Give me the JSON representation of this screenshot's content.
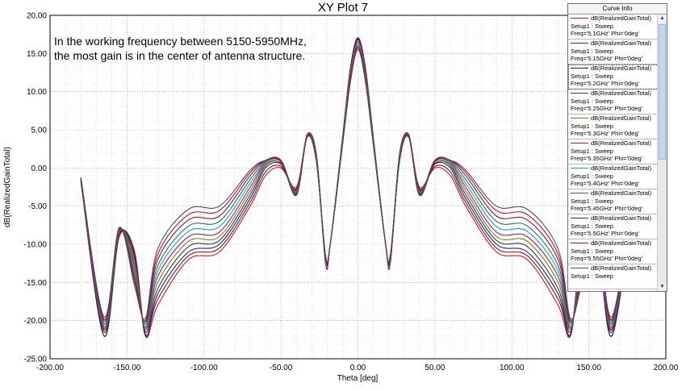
{
  "chart_data": {
    "type": "line",
    "title": "XY Plot 7",
    "xlabel": "Theta [deg]",
    "ylabel": "dB(RealizedGainTotal)",
    "xlim": [
      -200,
      200
    ],
    "ylim": [
      -25,
      20
    ],
    "x_ticks": [
      "-200.00",
      "-150.00",
      "-100.00",
      "-50.00",
      "0.00",
      "50.00",
      "100.00",
      "150.00",
      "200.00"
    ],
    "y_ticks": [
      "20.00",
      "15.00",
      "10.00",
      "5.00",
      "0.00",
      "-5.00",
      "-10.00",
      "-15.00",
      "-20.00",
      "-25.00"
    ],
    "grid": true,
    "annotation": [
      "In the working frequency between 5150-5950MHz,",
      "the most gain is in the center of antenna structure."
    ],
    "legend_title": "Curve Info",
    "legend_position": "top-right",
    "x": [
      -180,
      -165,
      -155,
      -145,
      -138,
      -130,
      -110,
      -90,
      -70,
      -60,
      -50,
      -40,
      -33,
      -27,
      -21,
      -18,
      -10,
      -5,
      0,
      5,
      10,
      18,
      21,
      27,
      33,
      40,
      50,
      60,
      70,
      90,
      110,
      130,
      138,
      145,
      155,
      165,
      180
    ],
    "series": [
      {
        "name": "dB(RealizedGainTotal) Setup1 : Sweep Freq='5.1GHz' Phi='0deg'",
        "color": "#e8101e",
        "values": [
          -1.8,
          -22,
          -9,
          -11,
          -22,
          -18,
          -12,
          -11,
          -5,
          -1,
          0,
          -2.5,
          4.2,
          1.8,
          -12,
          -10,
          4,
          13,
          17.1,
          13,
          4,
          -10,
          -12,
          1.8,
          4.2,
          -2.5,
          0,
          -1,
          -5,
          -11,
          -12,
          -18,
          -22,
          -11,
          -9,
          -22,
          -1.8
        ]
      },
      {
        "name": "dB(RealizedGainTotal) Setup1 : Sweep Freq='5.15GHz' Phi='0deg'",
        "color": "#7a1730",
        "values": [
          -1.7,
          -21.5,
          -8.8,
          -11.3,
          -21.8,
          -17.2,
          -11.5,
          -10.5,
          -4.5,
          -0.5,
          0.2,
          -2.7,
          4.2,
          1.7,
          -12,
          -10,
          3.9,
          12.9,
          17.0,
          12.9,
          3.9,
          -10,
          -12,
          1.7,
          4.2,
          -2.7,
          0.2,
          -0.5,
          -4.5,
          -10.5,
          -11.5,
          -17.2,
          -21.8,
          -11.3,
          -8.8,
          -21.5,
          -1.7
        ]
      },
      {
        "name": "dB(RealizedGainTotal) Setup1 : Sweep Freq='5.2GHz' Phi='0deg'",
        "color": "#18216e",
        "values": [
          -1.6,
          -22,
          -8.7,
          -11.5,
          -22,
          -16.5,
          -11,
          -10,
          -4,
          0,
          0.5,
          -2.8,
          4.3,
          1.6,
          -12.5,
          -10,
          3.8,
          12.7,
          16.9,
          12.7,
          3.8,
          -10,
          -12.5,
          1.6,
          4.3,
          -2.8,
          0.5,
          0,
          -4,
          -10,
          -11,
          -16.5,
          -22,
          -11.5,
          -8.7,
          -22,
          -1.6
        ]
      },
      {
        "name": "dB(RealizedGainTotal) Setup1 : Sweep Freq='5.25GHz' Phi='0deg'",
        "color": "#3a3a44",
        "values": [
          -1.6,
          -21.2,
          -8.5,
          -12,
          -21.5,
          -15.8,
          -10.3,
          -9.5,
          -3.5,
          0.3,
          0.6,
          -2.9,
          4.3,
          1.5,
          -12,
          -10,
          3.7,
          12.5,
          16.8,
          12.5,
          3.7,
          -10,
          -12,
          1.5,
          4.3,
          -2.9,
          0.6,
          0.3,
          -3.5,
          -9.5,
          -10.3,
          -15.8,
          -21.5,
          -12,
          -8.5,
          -21.2,
          -1.6
        ]
      },
      {
        "name": "dB(RealizedGainTotal) Setup1 : Sweep Freq='5.3GHz' Phi='0deg'",
        "color": "#7a7a18",
        "values": [
          -1.5,
          -21,
          -8.4,
          -12.5,
          -21.2,
          -15,
          -9.6,
          -9,
          -3,
          0.5,
          0.8,
          -3,
          4.4,
          1.4,
          -12.2,
          -10,
          3.6,
          12.3,
          16.6,
          12.3,
          3.6,
          -10,
          -12.2,
          1.4,
          4.4,
          -3,
          0.8,
          0.5,
          -3,
          -9,
          -9.6,
          -15,
          -21.2,
          -12.5,
          -8.4,
          -21,
          -1.5
        ]
      },
      {
        "name": "dB(RealizedGainTotal) Setup1 : Sweep Freq='5.35GHz' Phi='0deg'",
        "color": "#b0147a",
        "values": [
          -1.5,
          -20.8,
          -8.3,
          -13,
          -21,
          -14.2,
          -9,
          -8.4,
          -2.5,
          0.7,
          0.9,
          -3.1,
          4.4,
          1.3,
          -12.5,
          -10,
          3.5,
          12.1,
          16.5,
          12.1,
          3.5,
          -10,
          -12.5,
          1.3,
          4.4,
          -3.1,
          0.9,
          0.7,
          -2.5,
          -8.4,
          -9,
          -14.2,
          -21,
          -13,
          -8.3,
          -20.8,
          -1.5
        ]
      },
      {
        "name": "dB(RealizedGainTotal) Setup1 : Sweep Freq='5.4GHz' Phi='0deg'",
        "color": "#19a4a6",
        "values": [
          -1.4,
          -20.5,
          -8.2,
          -13.5,
          -20.8,
          -13.5,
          -8.3,
          -7.7,
          -2,
          0.8,
          1,
          -3.2,
          4.3,
          1.2,
          -12.2,
          -10,
          3.4,
          11.9,
          16.3,
          11.9,
          3.4,
          -10,
          -12.2,
          1.2,
          4.3,
          -3.2,
          1,
          0.8,
          -2,
          -7.7,
          -8.3,
          -13.5,
          -20.8,
          -13.5,
          -8.2,
          -20.5,
          -1.4
        ]
      },
      {
        "name": "dB(RealizedGainTotal) Setup1 : Sweep Freq='5.45GHz' Phi='0deg'",
        "color": "#1d6f7c",
        "values": [
          -1.4,
          -20.3,
          -8.1,
          -14,
          -20.5,
          -12.8,
          -7.6,
          -7,
          -1.5,
          0.9,
          1,
          -3.3,
          4.3,
          1.1,
          -12,
          -10,
          3.3,
          11.7,
          16.1,
          11.7,
          3.3,
          -10,
          -12,
          1.1,
          4.3,
          -3.3,
          1,
          0.9,
          -1.5,
          -7,
          -7.6,
          -12.8,
          -20.5,
          -14,
          -8.1,
          -20.3,
          -1.4
        ]
      },
      {
        "name": "dB(RealizedGainTotal) Setup1 : Sweep Freq='5.5GHz' Phi='0deg'",
        "color": "#8a1a1a",
        "values": [
          -1.3,
          -20,
          -8,
          -14.5,
          -20.2,
          -12,
          -6.8,
          -6.3,
          -1,
          1,
          1,
          -3.4,
          4.2,
          1,
          -11.8,
          -10,
          3.2,
          11.5,
          15.9,
          11.5,
          3.2,
          -10,
          -11.8,
          1,
          4.2,
          -3.4,
          1,
          1,
          -1,
          -6.3,
          -6.8,
          -12,
          -20.2,
          -14.5,
          -8,
          -20,
          -1.3
        ]
      },
      {
        "name": "dB(RealizedGainTotal) Setup1 : Sweep Freq='5.55GHz' Phi='0deg'",
        "color": "#b5103c",
        "values": [
          -1.3,
          -19.8,
          -7.9,
          -15,
          -20,
          -11.3,
          -6.1,
          -5.6,
          -0.6,
          1,
          0.9,
          -3.5,
          4.1,
          0.9,
          -11.6,
          -10,
          3.1,
          11.3,
          15.7,
          11.3,
          3.1,
          -10,
          -11.6,
          0.9,
          4.1,
          -3.5,
          0.9,
          1,
          -0.6,
          -5.6,
          -6.1,
          -11.3,
          -20,
          -15,
          -7.9,
          -19.8,
          -1.3
        ]
      },
      {
        "name": "dB(RealizedGainTotal) Setup1 : Sweep",
        "color": "#4d4d54",
        "values": [
          -1.2,
          -19.5,
          -7.8,
          -15.5,
          -19.7,
          -10.6,
          -5.4,
          -5,
          -0.3,
          1,
          0.8,
          -3.6,
          4,
          0.8,
          -11.4,
          -10,
          3,
          11.1,
          15.5,
          11.1,
          3,
          -10,
          -11.4,
          0.8,
          4,
          -3.6,
          0.8,
          1,
          -0.3,
          -5,
          -5.4,
          -10.6,
          -19.7,
          -15.5,
          -7.8,
          -19.5,
          -1.2
        ]
      }
    ]
  },
  "legend_items": [
    {
      "line1": "dB(RealizedGainTotal)",
      "line2": "Setup1 : Sweep",
      "line3": "Freq='5.1GHz' Phi='0deg'",
      "color": "#e8101e"
    },
    {
      "line1": "dB(RealizedGainTotal)",
      "line2": "Setup1 : Sweep",
      "line3": "Freq='5.15GHz' Phi='0deg'",
      "color": "#7a1730"
    },
    {
      "line1": "dB(RealizedGainTotal)",
      "line2": "Setup1 : Sweep",
      "line3": "Freq='5.2GHz' Phi='0deg'",
      "color": "#18216e"
    },
    {
      "line1": "dB(RealizedGainTotal)",
      "line2": "Setup1 : Sweep",
      "line3": "Freq='5.25GHz' Phi='0deg'",
      "color": "#3a3a44"
    },
    {
      "line1": "dB(RealizedGainTotal)",
      "line2": "Setup1 : Sweep",
      "line3": "Freq='5.3GHz' Phi='0deg'",
      "color": "#7a7a18"
    },
    {
      "line1": "dB(RealizedGainTotal)",
      "line2": "Setup1 : Sweep",
      "line3": "Freq='5.35GHz' Phi='0deg'",
      "color": "#b0147a"
    },
    {
      "line1": "dB(RealizedGainTotal)",
      "line2": "Setup1 : Sweep",
      "line3": "Freq='5.4GHz' Phi='0deg'",
      "color": "#19a4a6"
    },
    {
      "line1": "dB(RealizedGainTotal)",
      "line2": "Setup1 : Sweep",
      "line3": "Freq='5.45GHz' Phi='0deg'",
      "color": "#1d6f7c"
    },
    {
      "line1": "dB(RealizedGainTotal)",
      "line2": "Setup1 : Sweep",
      "line3": "Freq='5.5GHz' Phi='0deg'",
      "color": "#8a1a1a"
    },
    {
      "line1": "dB(RealizedGainTotal)",
      "line2": "Setup1 : Sweep",
      "line3": "Freq='5.55GHz' Phi='0deg'",
      "color": "#b5103c"
    },
    {
      "line1": "dB(RealizedGainTotal)",
      "line2": "Setup1 : Sweep",
      "line3": "",
      "color": "#4d4d54"
    }
  ],
  "scroll_up_icon": "triangle-up",
  "scroll_down_icon": "triangle-down"
}
